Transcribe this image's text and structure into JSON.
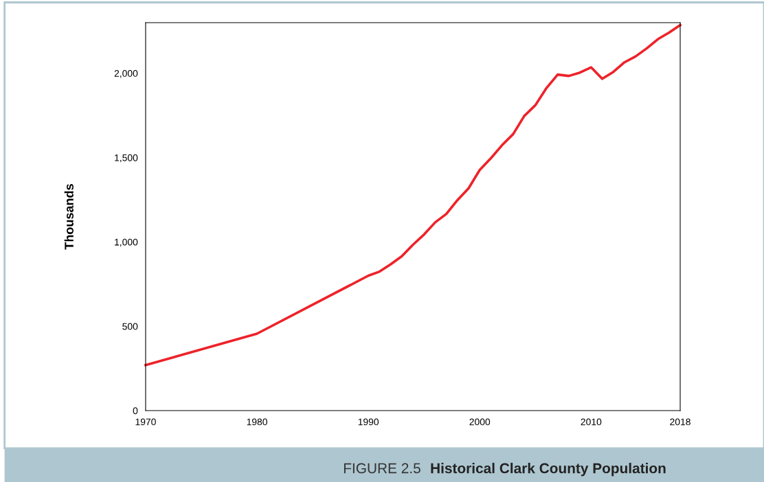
{
  "chart_data": {
    "type": "line",
    "title": "Historical Clark County Population",
    "annotations": [
      "FIGURE 2.5"
    ],
    "ylabel": "Thousands",
    "x": [
      1970,
      1980,
      1990,
      1991,
      1992,
      1993,
      1994,
      1995,
      1996,
      1997,
      1998,
      1999,
      2000,
      2001,
      2002,
      2003,
      2004,
      2005,
      2006,
      2007,
      2008,
      2009,
      2010,
      2011,
      2012,
      2013,
      2014,
      2015,
      2016,
      2017,
      2018
    ],
    "series": [
      {
        "color": "#ee2229",
        "values": [
          270,
          456,
          800,
          824,
          867,
          915,
          983,
          1044,
          1116,
          1166,
          1248,
          1318,
          1427,
          1496,
          1573,
          1639,
          1747,
          1811,
          1913,
          1992,
          1984,
          2004,
          2035,
          1967,
          2008,
          2065,
          2100,
          2148,
          2202,
          2241,
          2286
        ]
      }
    ],
    "xlim": [
      1970,
      2018
    ],
    "xticks": [
      1970,
      1980,
      1990,
      2000,
      2010,
      2018
    ],
    "ylim": [
      0,
      2300
    ],
    "yticks": [
      0,
      {
        "value": 500,
        "label": "500"
      },
      {
        "value": 1000,
        "label": "1,000"
      },
      {
        "value": 1500,
        "label": "1,500"
      },
      {
        "value": 2000,
        "label": "2,000"
      }
    ],
    "grid": false,
    "legend": false,
    "marker": "none",
    "line_style": "solid"
  }
}
